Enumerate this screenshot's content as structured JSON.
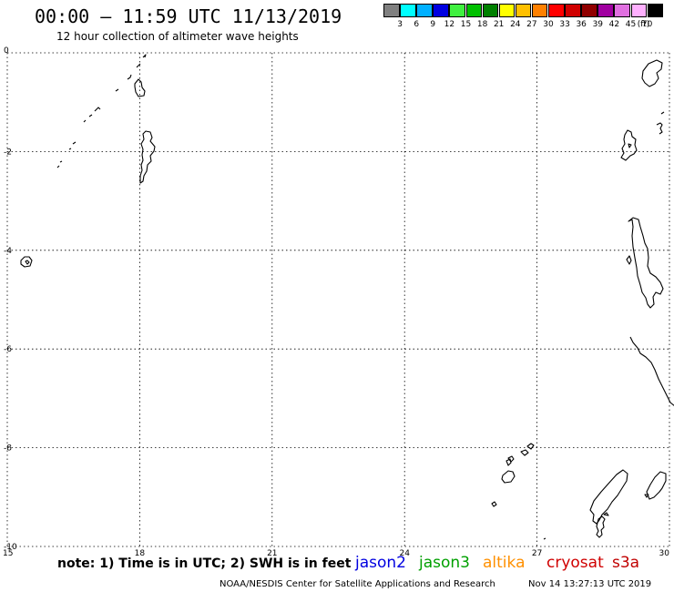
{
  "header": {
    "title": "00:00 – 11:59 UTC 11/13/2019",
    "subtitle": "12 hour collection of altimeter wave heights"
  },
  "legend": {
    "unit": "(ft)",
    "bins": [
      {
        "label": "3",
        "color": "#808080"
      },
      {
        "label": "6",
        "color": "#00ffff"
      },
      {
        "label": "9",
        "color": "#00b0ff"
      },
      {
        "label": "12",
        "color": "#0000e0"
      },
      {
        "label": "15",
        "color": "#40f040"
      },
      {
        "label": "18",
        "color": "#00c000"
      },
      {
        "label": "21",
        "color": "#008000"
      },
      {
        "label": "24",
        "color": "#ffff00"
      },
      {
        "label": "27",
        "color": "#ffc000"
      },
      {
        "label": "30",
        "color": "#ff8000"
      },
      {
        "label": "33",
        "color": "#ff0000"
      },
      {
        "label": "36",
        "color": "#d00000"
      },
      {
        "label": "39",
        "color": "#900000"
      },
      {
        "label": "42",
        "color": "#a000a0"
      },
      {
        "label": "45",
        "color": "#e070e0"
      },
      {
        "label": "70",
        "color": "#ffb0ff"
      },
      {
        "label": "",
        "color": "#000000"
      }
    ]
  },
  "map": {
    "lon_ticks": [
      "15",
      "18",
      "21",
      "24",
      "27",
      "30"
    ],
    "lat_ticks": [
      "0",
      "-2",
      "-4",
      "-6",
      "-8",
      "-10"
    ]
  },
  "footer": {
    "note": "note: 1) Time is in UTC; 2) SWH is in feet",
    "satellites": [
      {
        "name": "jason2",
        "color": "#0000e0"
      },
      {
        "name": "jason3",
        "color": "#00a000"
      },
      {
        "name": "altika",
        "color": "#ff9000"
      },
      {
        "name": "cryosat",
        "color": "#d00000"
      },
      {
        "name": "s3a",
        "color": "#c00000"
      }
    ],
    "credit": "NOAA/NESDIS Center for Satellite Applications and Research",
    "timestamp": "Nov 14 13:27:13 UTC 2019"
  }
}
